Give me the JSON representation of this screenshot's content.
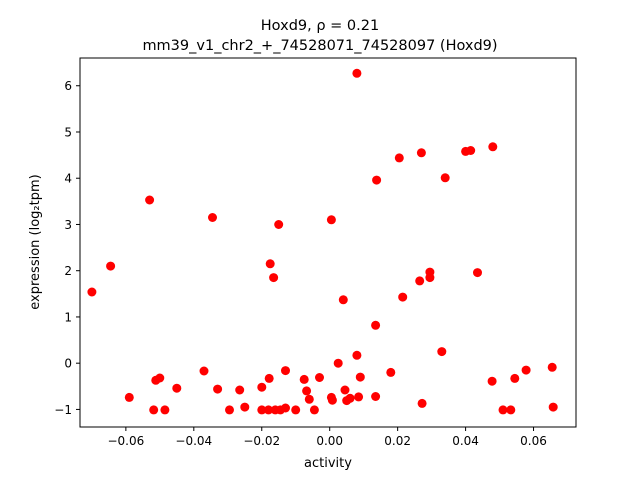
{
  "chart_data": {
    "type": "scatter",
    "title_line1": "Hoxd9, ρ = 0.21",
    "title_line2": "mm39_v1_chr2_+_74528071_74528097 (Hoxd9)",
    "xlabel": "activity",
    "ylabel": "expression (log₂tpm)",
    "xlim": [
      -0.0735,
      0.0725
    ],
    "ylim": [
      -1.38,
      6.6
    ],
    "xticks": [
      -0.06,
      -0.04,
      -0.02,
      0.0,
      0.02,
      0.04,
      0.06
    ],
    "xtick_labels": [
      "−0.06",
      "−0.04",
      "−0.02",
      "0.00",
      "0.02",
      "0.04",
      "0.06"
    ],
    "yticks": [
      -1,
      0,
      1,
      2,
      3,
      4,
      5,
      6
    ],
    "ytick_labels": [
      "−1",
      "0",
      "1",
      "2",
      "3",
      "4",
      "5",
      "6"
    ],
    "marker_color": "#ff0000",
    "grid": false,
    "points": [
      {
        "x": -0.07,
        "y": 1.54
      },
      {
        "x": -0.0645,
        "y": 2.1
      },
      {
        "x": -0.059,
        "y": -0.74
      },
      {
        "x": -0.053,
        "y": 3.53
      },
      {
        "x": -0.0518,
        "y": -1.01
      },
      {
        "x": -0.0512,
        "y": -0.37
      },
      {
        "x": -0.05,
        "y": -0.32
      },
      {
        "x": -0.0485,
        "y": -1.01
      },
      {
        "x": -0.045,
        "y": -0.54
      },
      {
        "x": -0.037,
        "y": -0.17
      },
      {
        "x": -0.0345,
        "y": 3.15
      },
      {
        "x": -0.033,
        "y": -0.56
      },
      {
        "x": -0.0295,
        "y": -1.01
      },
      {
        "x": -0.0265,
        "y": -0.58
      },
      {
        "x": -0.025,
        "y": -0.95
      },
      {
        "x": -0.02,
        "y": -0.52
      },
      {
        "x": -0.02,
        "y": -1.01
      },
      {
        "x": -0.018,
        "y": -1.01
      },
      {
        "x": -0.0178,
        "y": -0.33
      },
      {
        "x": -0.0175,
        "y": 2.15
      },
      {
        "x": -0.0165,
        "y": 1.85
      },
      {
        "x": -0.016,
        "y": -1.01
      },
      {
        "x": -0.015,
        "y": 3.0
      },
      {
        "x": -0.0145,
        "y": -1.01
      },
      {
        "x": -0.013,
        "y": -0.16
      },
      {
        "x": -0.013,
        "y": -0.97
      },
      {
        "x": -0.01,
        "y": -1.01
      },
      {
        "x": -0.0075,
        "y": -0.35
      },
      {
        "x": -0.0068,
        "y": -0.6
      },
      {
        "x": -0.006,
        "y": -0.78
      },
      {
        "x": -0.0045,
        "y": -1.01
      },
      {
        "x": -0.003,
        "y": -0.31
      },
      {
        "x": 0.0005,
        "y": -0.74
      },
      {
        "x": 0.0005,
        "y": 3.1
      },
      {
        "x": 0.0008,
        "y": -0.8
      },
      {
        "x": 0.0025,
        "y": 0.0
      },
      {
        "x": 0.004,
        "y": 1.37
      },
      {
        "x": 0.0045,
        "y": -0.58
      },
      {
        "x": 0.005,
        "y": -0.81
      },
      {
        "x": 0.006,
        "y": -0.76
      },
      {
        "x": 0.008,
        "y": 0.17
      },
      {
        "x": 0.008,
        "y": 6.27
      },
      {
        "x": 0.0085,
        "y": -0.73
      },
      {
        "x": 0.009,
        "y": -0.3
      },
      {
        "x": 0.0135,
        "y": 0.82
      },
      {
        "x": 0.0135,
        "y": -0.72
      },
      {
        "x": 0.0138,
        "y": 3.96
      },
      {
        "x": 0.018,
        "y": -0.2
      },
      {
        "x": 0.0205,
        "y": 4.44
      },
      {
        "x": 0.0215,
        "y": 1.43
      },
      {
        "x": 0.0265,
        "y": 1.78
      },
      {
        "x": 0.027,
        "y": 4.55
      },
      {
        "x": 0.0272,
        "y": -0.87
      },
      {
        "x": 0.0295,
        "y": 1.85
      },
      {
        "x": 0.0295,
        "y": 1.97
      },
      {
        "x": 0.033,
        "y": 0.25
      },
      {
        "x": 0.034,
        "y": 4.01
      },
      {
        "x": 0.04,
        "y": 4.58
      },
      {
        "x": 0.0415,
        "y": 4.6
      },
      {
        "x": 0.0435,
        "y": 1.96
      },
      {
        "x": 0.0478,
        "y": -0.39
      },
      {
        "x": 0.048,
        "y": 4.68
      },
      {
        "x": 0.051,
        "y": -1.01
      },
      {
        "x": 0.0533,
        "y": -1.01
      },
      {
        "x": 0.0545,
        "y": -0.33
      },
      {
        "x": 0.0578,
        "y": -0.15
      },
      {
        "x": 0.0655,
        "y": -0.09
      },
      {
        "x": 0.0658,
        "y": -0.95
      }
    ]
  }
}
